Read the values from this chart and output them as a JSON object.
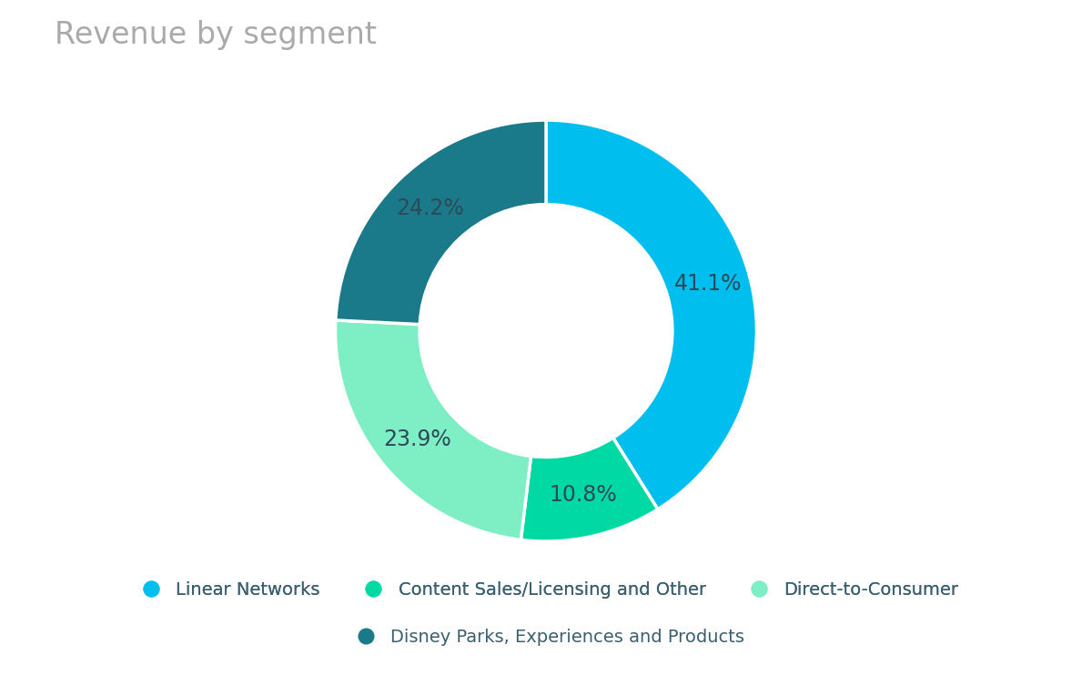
{
  "title": "Revenue by segment",
  "title_color": "#aaaaaa",
  "title_fontsize": 24,
  "segments": [
    {
      "label": "Linear Networks",
      "value": 41.1,
      "color": "#00BFEF"
    },
    {
      "label": "Content Sales/Licensing and Other",
      "value": 10.8,
      "color": "#00D9A3"
    },
    {
      "label": "Direct-to-Consumer",
      "value": 23.9,
      "color": "#7EEEC4"
    },
    {
      "label": "Disney Parks, Experiences and Products",
      "value": 24.2,
      "color": "#1B7A8A"
    }
  ],
  "pct_label_color": "#2d4a5a",
  "pct_fontsize": 17,
  "legend_fontsize": 14,
  "legend_text_color": "#3a6070",
  "background_color": "#ffffff",
  "donut_width": 0.4,
  "start_angle": 90
}
